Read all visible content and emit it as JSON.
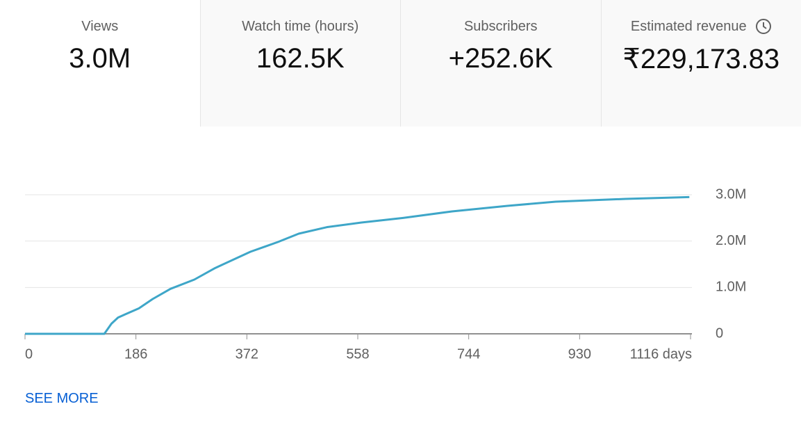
{
  "metrics": [
    {
      "label": "Views",
      "value": "3.0M"
    },
    {
      "label": "Watch time (hours)",
      "value": "162.5K"
    },
    {
      "label": "Subscribers",
      "value": "+252.6K"
    },
    {
      "label": "Estimated revenue",
      "value": "₹229,173.83"
    }
  ],
  "chart_data": {
    "type": "line",
    "color": "#3ea6c8",
    "x": [
      0,
      133,
      145,
      156,
      168,
      191,
      214,
      244,
      284,
      319,
      378,
      424,
      459,
      506,
      564,
      634,
      716,
      809,
      890,
      1007,
      1114
    ],
    "values": [
      0,
      0,
      220000,
      350000,
      420000,
      550000,
      750000,
      970000,
      1170000,
      1420000,
      1770000,
      1980000,
      2160000,
      2300000,
      2400000,
      2500000,
      2640000,
      2760000,
      2850000,
      2910000,
      2950000
    ],
    "xlim": [
      0,
      1116
    ],
    "xticks": [
      0,
      186,
      372,
      558,
      744,
      930,
      {
        "value": 1116,
        "label": "1116 days"
      }
    ],
    "ylim": [
      0,
      3000000
    ],
    "yticks": [
      0,
      {
        "value": 1000000,
        "label": "1.0M"
      },
      {
        "value": 2000000,
        "label": "2.0M"
      },
      {
        "value": 3000000,
        "label": "3.0M"
      }
    ],
    "grid": true
  },
  "link": "SEE MORE"
}
